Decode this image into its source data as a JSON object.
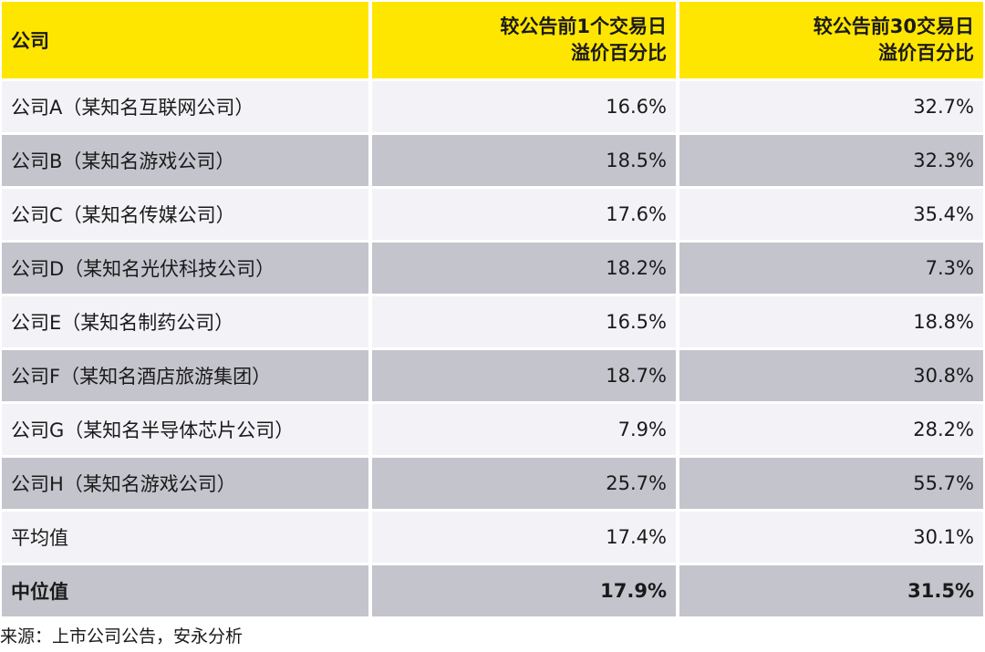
{
  "table": {
    "headers": {
      "company": "公司",
      "premium_1d_line1": "较公告前1个交易日",
      "premium_1d_line2": "溢价百分比",
      "premium_30d_line1": "较公告前30交易日",
      "premium_30d_line2": "溢价百分比"
    },
    "rows": [
      {
        "company": "公司A（某知名互联网公司）",
        "premium_1d": "16.6%",
        "premium_30d": "32.7%"
      },
      {
        "company": "公司B（某知名游戏公司）",
        "premium_1d": "18.5%",
        "premium_30d": "32.3%"
      },
      {
        "company": "公司C（某知名传媒公司）",
        "premium_1d": "17.6%",
        "premium_30d": "35.4%"
      },
      {
        "company": "公司D（某知名光伏科技公司）",
        "premium_1d": "18.2%",
        "premium_30d": "7.3%"
      },
      {
        "company": "公司E（某知名制药公司）",
        "premium_1d": "16.5%",
        "premium_30d": "18.8%"
      },
      {
        "company": "公司F（某知名酒店旅游集团）",
        "premium_1d": "18.7%",
        "premium_30d": "30.8%"
      },
      {
        "company": "公司G（某知名半导体芯片公司）",
        "premium_1d": "7.9%",
        "premium_30d": "28.2%"
      },
      {
        "company": "公司H（某知名游戏公司）",
        "premium_1d": "25.7%",
        "premium_30d": "55.7%"
      }
    ],
    "average": {
      "label": "平均值",
      "premium_1d": "17.4%",
      "premium_30d": "30.1%"
    },
    "median": {
      "label": "中位值",
      "premium_1d": "17.9%",
      "premium_30d": "31.5%"
    }
  },
  "footer": {
    "source": "来源：上市公司公告，安永分析"
  },
  "colors": {
    "header_bg": "#ffe600",
    "row_light": "#f3f3f7",
    "row_dark": "#c4c4cd"
  }
}
